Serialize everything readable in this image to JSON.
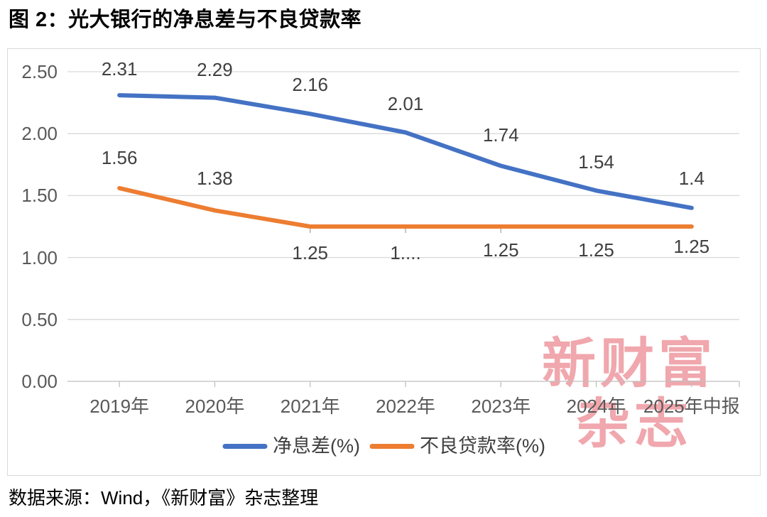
{
  "page": {
    "title": "图 2：光大银行的净息差与不良贷款率",
    "source_note": "数据来源：Wind，《新财富》杂志整理",
    "watermark": {
      "line1": "新财富",
      "line2": "杂志",
      "color": "#f0a7ad"
    }
  },
  "chart_data": {
    "type": "line",
    "title": "光大银行的净息差与不良贷款率",
    "categories": [
      "2019年",
      "2020年",
      "2021年",
      "2022年",
      "2023年",
      "2024年",
      "2025年中报"
    ],
    "series": [
      {
        "name": "净息差(%)",
        "color": "#4472c4",
        "values": [
          2.31,
          2.29,
          2.16,
          2.01,
          1.74,
          1.54,
          1.4
        ],
        "labels": [
          "2.31",
          "2.29",
          "2.16",
          "2.01",
          "1.74",
          "1.54",
          "1.4"
        ]
      },
      {
        "name": "不良贷款率(%)",
        "color": "#ed7d31",
        "values": [
          1.56,
          1.38,
          1.25,
          1.25,
          1.25,
          1.25,
          1.25
        ],
        "labels": [
          "1.56",
          "1.38",
          "1.25",
          "1....",
          "1.25",
          "1.25",
          "1.25"
        ]
      }
    ],
    "y_ticks": [
      {
        "value": 2.5,
        "label": "2.50"
      },
      {
        "value": 2.0,
        "label": "2.00"
      },
      {
        "value": 1.5,
        "label": "1.50"
      },
      {
        "value": 1.0,
        "label": "1.00"
      },
      {
        "value": 0.5,
        "label": "0.50"
      },
      {
        "value": 0.0,
        "label": "0.00"
      }
    ],
    "ylim": [
      0,
      2.5
    ],
    "grid": true,
    "legend_position": "bottom",
    "styles": {
      "gridline_color": "#d9d9d9",
      "axis_line_color": "#bfbfbf",
      "leader_line_color": "#a6a6a6",
      "axis_text_color": "#595959",
      "data_label_color": "#404040",
      "border_color": "#d9d9d9"
    }
  }
}
